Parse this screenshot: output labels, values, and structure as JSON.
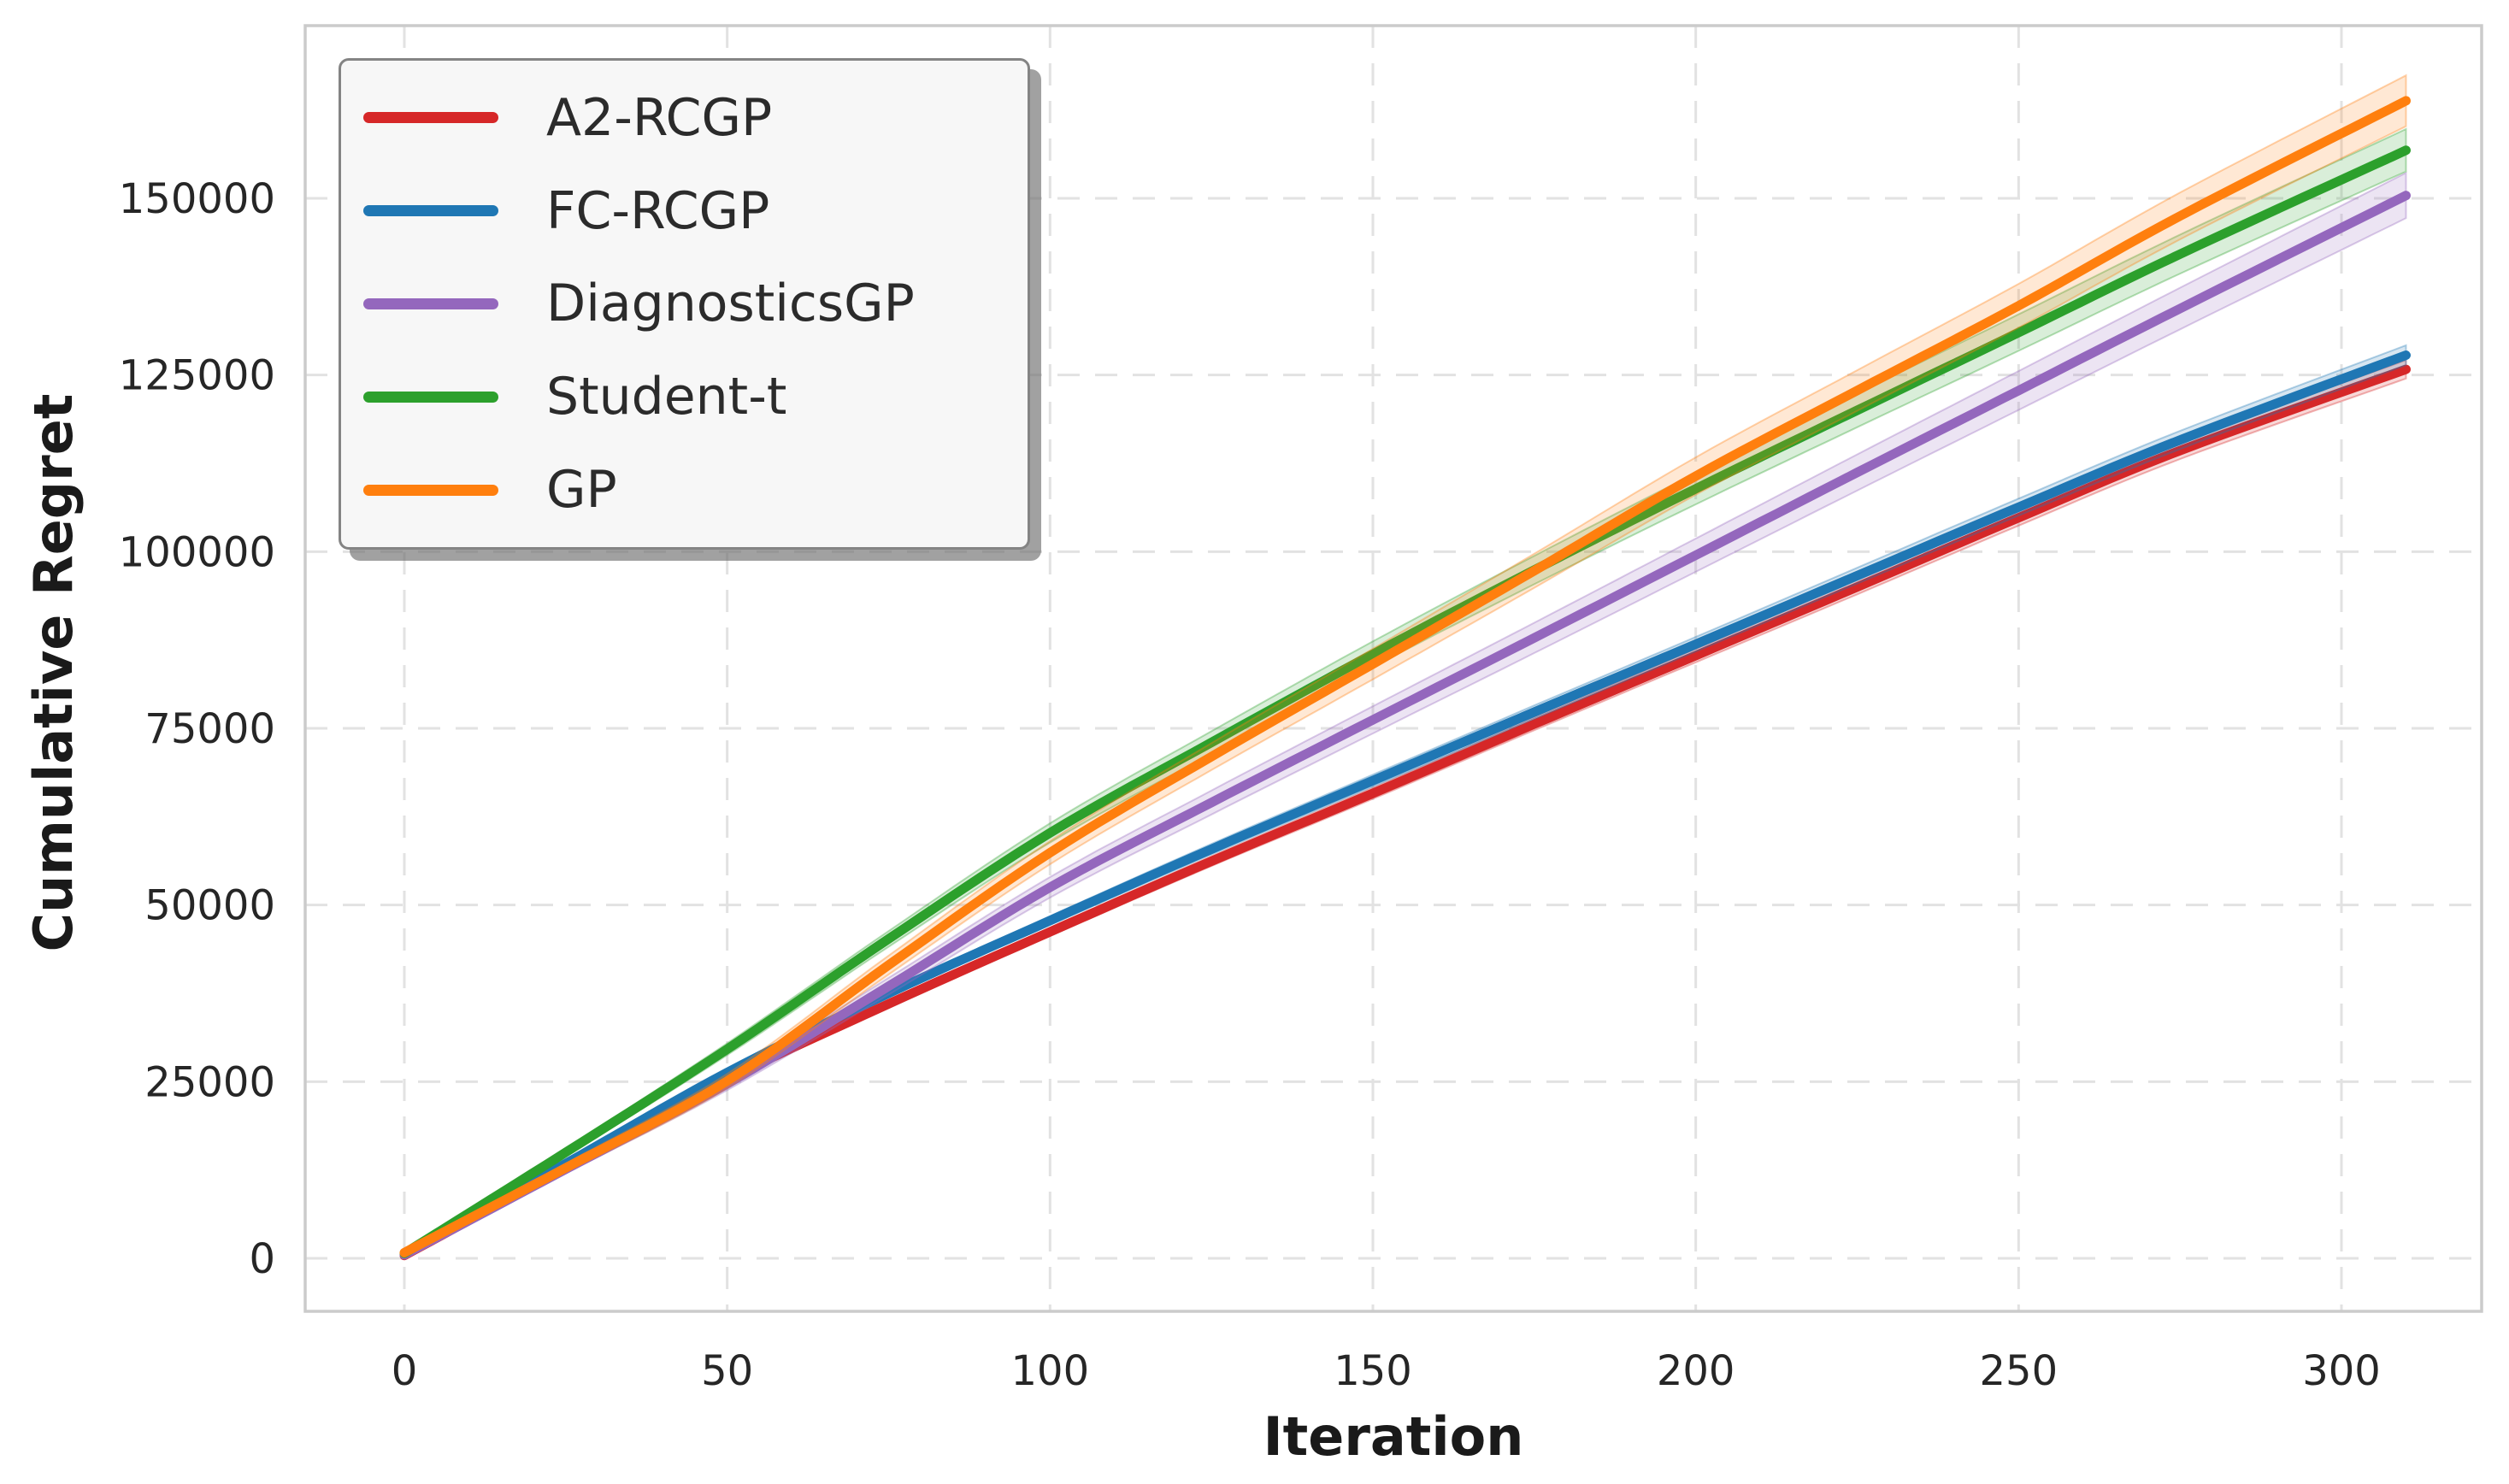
{
  "chart_data": {
    "type": "line",
    "title": "",
    "xlabel": "Iteration",
    "ylabel": "Cumulative Regret",
    "x": [
      0,
      25,
      50,
      75,
      100,
      125,
      150,
      175,
      200,
      225,
      250,
      275,
      310
    ],
    "xticks": [
      0,
      50,
      100,
      150,
      200,
      250,
      300
    ],
    "yticks": [
      0,
      25000,
      50000,
      75000,
      100000,
      125000,
      150000
    ],
    "xlim": [
      -15,
      322
    ],
    "ylim": [
      -7500,
      174400
    ],
    "grid": true,
    "grid_style": "dashed",
    "legend_position": "upper left",
    "series": [
      {
        "name": "A2-RCGP",
        "color": "#d62728",
        "ci_halfwidth_max": 1300,
        "values": [
          400,
          12800,
          25300,
          36000,
          46200,
          56200,
          65800,
          75600,
          85300,
          95000,
          104800,
          114300,
          125800
        ]
      },
      {
        "name": "FC-RCGP",
        "color": "#1f77b4",
        "ci_halfwidth_max": 1400,
        "values": [
          600,
          13400,
          26300,
          37500,
          47800,
          57900,
          67600,
          77300,
          86900,
          96600,
          106300,
          115800,
          127800
        ]
      },
      {
        "name": "DiagnosticsGP",
        "color": "#9467bd",
        "ci_halfwidth_max": 3200,
        "values": [
          500,
          12600,
          24700,
          38500,
          52500,
          64500,
          76200,
          87800,
          99500,
          111200,
          122800,
          134400,
          150400
        ]
      },
      {
        "name": "Student-t",
        "color": "#2ca02c",
        "ci_halfwidth_max": 3000,
        "values": [
          700,
          15000,
          29600,
          45200,
          60200,
          73000,
          85500,
          97400,
          108900,
          120000,
          131000,
          142100,
          156800
        ]
      },
      {
        "name": "GP",
        "color": "#ff7f0e",
        "ci_halfwidth_max": 3600,
        "values": [
          800,
          12800,
          25100,
          41500,
          57400,
          71000,
          84100,
          97300,
          110700,
          122800,
          134800,
          147500,
          163800
        ]
      }
    ],
    "style": {
      "spine_color": "#cbcbcb",
      "grid_color": "#e2e2e2",
      "band_fill_opacity": 0.18,
      "band_edge_opacity": 0.35,
      "line_width": 11,
      "legend_background": "#f7f7f7",
      "legend_border": "#848484",
      "text_color": "#262626"
    }
  }
}
